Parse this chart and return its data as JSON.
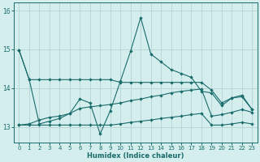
{
  "xlabel": "Humidex (Indice chaleur)",
  "bg_color": "#d4eeee",
  "grid_color": "#b8d8d8",
  "line_color": "#1a6b6b",
  "x_values": [
    0,
    1,
    2,
    3,
    4,
    5,
    6,
    7,
    8,
    9,
    10,
    11,
    12,
    13,
    14,
    15,
    16,
    17,
    18,
    19,
    20,
    21,
    22,
    23
  ],
  "series": [
    [
      14.98,
      14.22,
      14.22,
      14.22,
      14.22,
      14.22,
      14.22,
      14.22,
      14.22,
      14.22,
      14.15,
      14.15,
      14.15,
      14.15,
      14.15,
      14.15,
      14.15,
      14.15,
      14.15,
      13.95,
      13.62,
      13.75,
      13.78,
      13.45
    ],
    [
      14.98,
      14.22,
      13.08,
      13.15,
      13.22,
      13.35,
      13.72,
      13.62,
      12.82,
      13.42,
      14.18,
      14.95,
      15.82,
      14.88,
      14.68,
      14.48,
      14.38,
      14.28,
      13.92,
      13.88,
      13.55,
      13.75,
      13.82,
      13.45
    ],
    [
      13.05,
      13.08,
      13.18,
      13.25,
      13.28,
      13.35,
      13.48,
      13.52,
      13.55,
      13.58,
      13.62,
      13.68,
      13.72,
      13.78,
      13.82,
      13.88,
      13.92,
      13.95,
      13.98,
      13.28,
      13.32,
      13.38,
      13.45,
      13.38
    ],
    [
      13.05,
      13.05,
      13.05,
      13.05,
      13.05,
      13.05,
      13.05,
      13.05,
      13.05,
      13.05,
      13.08,
      13.12,
      13.15,
      13.18,
      13.22,
      13.25,
      13.28,
      13.32,
      13.35,
      13.05,
      13.05,
      13.08,
      13.12,
      13.08
    ]
  ],
  "ylim": [
    12.6,
    16.2
  ],
  "yticks": [
    13,
    14,
    15,
    16
  ],
  "xticks": [
    0,
    1,
    2,
    3,
    4,
    5,
    6,
    7,
    8,
    9,
    10,
    11,
    12,
    13,
    14,
    15,
    16,
    17,
    18,
    19,
    20,
    21,
    22,
    23
  ]
}
